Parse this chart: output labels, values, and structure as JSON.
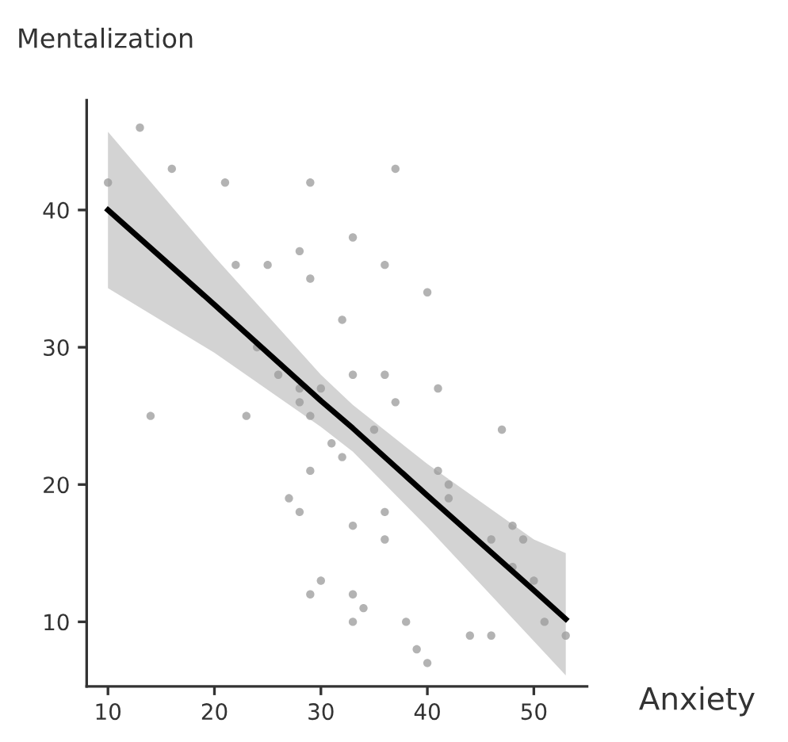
{
  "chart_data": {
    "type": "scatter",
    "xlabel": "Anxiety",
    "ylabel": "Mentalization",
    "xlim": [
      8,
      55
    ],
    "ylim": [
      5.3,
      48
    ],
    "xticks": [
      10,
      20,
      30,
      40,
      50
    ],
    "yticks": [
      10,
      20,
      30,
      40
    ],
    "grid": false,
    "legend": false,
    "series": [
      {
        "marker": "circle",
        "color": "#9a9a9a",
        "x": [
          10,
          13,
          16,
          21,
          29,
          37,
          33,
          28,
          22,
          25,
          36,
          29,
          40,
          32,
          24,
          26,
          28,
          30,
          33,
          36,
          41,
          28,
          37,
          14,
          23,
          29,
          35,
          47,
          31,
          32,
          29,
          41,
          42,
          42,
          27,
          28,
          36,
          33,
          48,
          36,
          46,
          49,
          48,
          50,
          30,
          29,
          33,
          34,
          33,
          38,
          51,
          44,
          46,
          53,
          39,
          40
        ],
        "values": [
          42,
          46,
          43,
          42,
          42,
          43,
          38,
          37,
          36,
          36,
          36,
          35,
          34,
          32,
          30,
          28,
          27,
          27,
          28,
          28,
          27,
          26,
          26,
          25,
          25,
          25,
          24,
          24,
          23,
          22,
          21,
          21,
          20,
          19,
          19,
          18,
          18,
          17,
          17,
          16,
          16,
          16,
          14,
          13,
          13,
          12,
          12,
          11,
          10,
          10,
          10,
          9,
          9,
          9,
          8,
          7
        ]
      },
      {
        "type": "line",
        "color": "#000000",
        "x": [
          10,
          20,
          30,
          33,
          40,
          50,
          53
        ],
        "values": [
          40,
          33.1,
          26.1,
          24.1,
          19.2,
          12.3,
          10.2
        ],
        "lower": [
          34.3,
          29.6,
          24.2,
          22.4,
          16.9,
          8.6,
          6.1
        ],
        "upper": [
          45.7,
          36.6,
          28.0,
          25.8,
          21.5,
          16.0,
          15.0
        ]
      }
    ]
  }
}
